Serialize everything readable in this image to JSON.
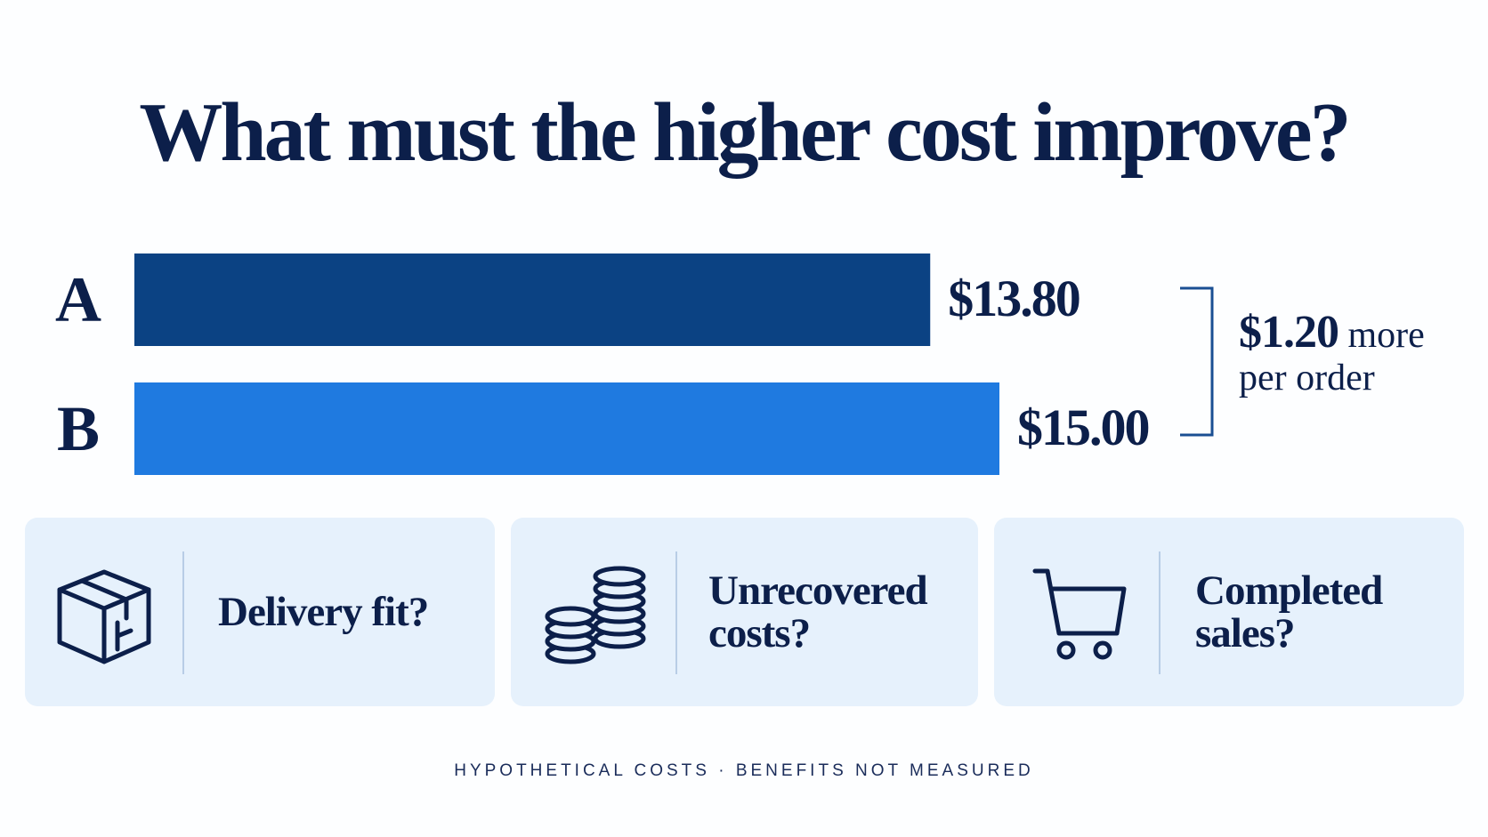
{
  "chart_data": {
    "type": "bar",
    "orientation": "horizontal",
    "title": "What must the higher cost improve?",
    "categories": [
      "A",
      "B"
    ],
    "values": [
      13.8,
      15.0
    ],
    "value_labels": [
      "$13.80",
      "$15.00"
    ],
    "colors": [
      "#0b4283",
      "#1f7ae0"
    ],
    "annotation": {
      "amount": "$1.20",
      "text": "more per order"
    },
    "cards": [
      "Delivery fit?",
      "Unrecovered costs?",
      "Completed sales?"
    ],
    "footnote": "HYPOTHETICAL COSTS · BENEFITS NOT MEASURED"
  }
}
